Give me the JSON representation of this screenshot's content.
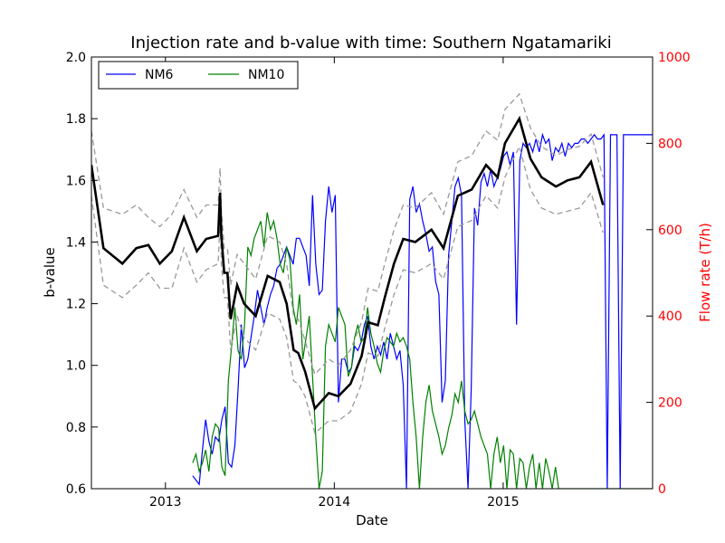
{
  "chart_data": {
    "type": "line",
    "title": "Injection rate and b-value with time: Southern Ngatamariki",
    "xlabel": "Date",
    "ylabel": "b-value",
    "y2label": "Flow rate (T/h)",
    "xlim": [
      "2012-07-25",
      "2015-11-20"
    ],
    "ylim": [
      0.6,
      2.0
    ],
    "y2lim": [
      0,
      1000
    ],
    "x_ticks": [
      "2013",
      "2014",
      "2015"
    ],
    "y_ticks": [
      "0.6",
      "0.8",
      "1.0",
      "1.2",
      "1.4",
      "1.6",
      "1.8",
      "2.0"
    ],
    "y2_ticks": [
      "0",
      "200",
      "400",
      "600",
      "800",
      "1000"
    ],
    "legend": {
      "position": "top-left",
      "entries": [
        "NM6",
        "NM10"
      ]
    },
    "colors": {
      "nm6": "#0000ff",
      "nm10": "#008000",
      "bvalue": "#000000",
      "bound": "#999999",
      "right_axis": "#ff0000"
    },
    "bvalue": {
      "dates": [
        "2012-07-25",
        "2012-08-20",
        "2012-09-30",
        "2012-10-30",
        "2012-11-25",
        "2012-12-20",
        "2013-01-15",
        "2013-02-10",
        "2013-03-10",
        "2013-03-30",
        "2013-04-25",
        "2013-04-29",
        "2013-05-02",
        "2013-05-08",
        "2013-05-15",
        "2013-05-22",
        "2013-06-05",
        "2013-06-20",
        "2013-07-15",
        "2013-08-10",
        "2013-09-05",
        "2013-09-20",
        "2013-10-05",
        "2013-10-15",
        "2013-10-30",
        "2013-11-20",
        "2013-12-20",
        "2014-01-10",
        "2014-02-05",
        "2014-03-01",
        "2014-03-15",
        "2014-04-05",
        "2014-04-20",
        "2014-05-10",
        "2014-05-30",
        "2014-06-25",
        "2014-07-30",
        "2014-08-25",
        "2014-09-25",
        "2014-10-25",
        "2014-11-25",
        "2014-12-20",
        "2015-01-05",
        "2015-02-05",
        "2015-03-01",
        "2015-03-25",
        "2015-04-25",
        "2015-05-20",
        "2015-06-15",
        "2015-07-10",
        "2015-08-05"
      ],
      "values": [
        1.65,
        1.38,
        1.33,
        1.38,
        1.39,
        1.33,
        1.37,
        1.48,
        1.37,
        1.41,
        1.42,
        1.56,
        1.42,
        1.3,
        1.3,
        1.15,
        1.26,
        1.2,
        1.16,
        1.29,
        1.27,
        1.2,
        1.05,
        1.04,
        0.98,
        0.86,
        0.91,
        0.9,
        0.94,
        1.03,
        1.14,
        1.13,
        1.22,
        1.33,
        1.41,
        1.4,
        1.44,
        1.38,
        1.55,
        1.57,
        1.65,
        1.61,
        1.72,
        1.8,
        1.67,
        1.61,
        1.58,
        1.6,
        1.61,
        1.66,
        1.52
      ]
    },
    "bvalue_upper": {
      "dates": [
        "2012-07-25",
        "2012-08-20",
        "2012-09-30",
        "2012-10-30",
        "2012-11-25",
        "2012-12-20",
        "2013-01-15",
        "2013-02-10",
        "2013-03-10",
        "2013-03-30",
        "2013-04-25",
        "2013-04-29",
        "2013-05-02",
        "2013-05-08",
        "2013-05-15",
        "2013-05-22",
        "2013-06-05",
        "2013-06-20",
        "2013-07-15",
        "2013-08-10",
        "2013-09-05",
        "2013-09-20",
        "2013-10-05",
        "2013-10-15",
        "2013-10-30",
        "2013-11-20",
        "2013-12-20",
        "2014-01-10",
        "2014-02-05",
        "2014-03-01",
        "2014-03-15",
        "2014-04-05",
        "2014-04-20",
        "2014-05-10",
        "2014-05-30",
        "2014-06-25",
        "2014-07-30",
        "2014-08-25",
        "2014-09-25",
        "2014-10-25",
        "2014-11-25",
        "2014-12-20",
        "2015-01-05",
        "2015-02-05",
        "2015-03-01",
        "2015-03-25",
        "2015-04-25",
        "2015-05-20",
        "2015-06-15",
        "2015-07-10",
        "2015-08-05"
      ],
      "values": [
        1.76,
        1.51,
        1.49,
        1.52,
        1.48,
        1.45,
        1.49,
        1.57,
        1.48,
        1.52,
        1.52,
        1.64,
        1.5,
        1.38,
        1.38,
        1.26,
        1.36,
        1.33,
        1.28,
        1.42,
        1.4,
        1.33,
        1.16,
        1.15,
        1.08,
        0.97,
        1.02,
        1.0,
        1.05,
        1.14,
        1.25,
        1.24,
        1.33,
        1.44,
        1.52,
        1.51,
        1.56,
        1.49,
        1.66,
        1.68,
        1.76,
        1.73,
        1.83,
        1.88,
        1.77,
        1.71,
        1.68,
        1.7,
        1.71,
        1.75,
        1.61
      ]
    },
    "bvalue_lower": {
      "dates": [
        "2012-07-25",
        "2012-08-20",
        "2012-09-30",
        "2012-10-30",
        "2012-11-25",
        "2012-12-20",
        "2013-01-15",
        "2013-02-10",
        "2013-03-10",
        "2013-03-30",
        "2013-04-25",
        "2013-04-29",
        "2013-05-02",
        "2013-05-08",
        "2013-05-15",
        "2013-05-22",
        "2013-06-05",
        "2013-06-20",
        "2013-07-15",
        "2013-08-10",
        "2013-09-05",
        "2013-09-20",
        "2013-10-05",
        "2013-10-15",
        "2013-10-30",
        "2013-11-20",
        "2013-12-20",
        "2014-01-10",
        "2014-02-05",
        "2014-03-01",
        "2014-03-15",
        "2014-04-05",
        "2014-04-20",
        "2014-05-10",
        "2014-05-30",
        "2014-06-25",
        "2014-07-30",
        "2014-08-25",
        "2014-09-25",
        "2014-10-25",
        "2014-11-25",
        "2014-12-20",
        "2015-01-05",
        "2015-02-05",
        "2015-03-01",
        "2015-03-25",
        "2015-04-25",
        "2015-05-20",
        "2015-06-15",
        "2015-07-10",
        "2015-08-05"
      ],
      "values": [
        1.55,
        1.26,
        1.22,
        1.26,
        1.3,
        1.25,
        1.25,
        1.38,
        1.27,
        1.31,
        1.33,
        1.47,
        1.33,
        1.22,
        1.22,
        1.05,
        1.16,
        1.09,
        1.05,
        1.17,
        1.15,
        1.09,
        0.95,
        0.94,
        0.9,
        0.78,
        0.82,
        0.82,
        0.85,
        0.94,
        1.04,
        1.03,
        1.12,
        1.23,
        1.31,
        1.3,
        1.33,
        1.28,
        1.45,
        1.47,
        1.55,
        1.51,
        1.61,
        1.71,
        1.57,
        1.51,
        1.49,
        1.5,
        1.51,
        1.56,
        1.43
      ]
    },
    "series": [
      {
        "name": "NM6",
        "dates": [
          "2013-03-01",
          "2013-03-08",
          "2013-03-15",
          "2013-03-22",
          "2013-03-29",
          "2013-04-05",
          "2013-04-12",
          "2013-04-19",
          "2013-04-26",
          "2013-05-03",
          "2013-05-10",
          "2013-05-17",
          "2013-05-24",
          "2013-05-31",
          "2013-06-07",
          "2013-06-14",
          "2013-06-21",
          "2013-06-28",
          "2013-07-05",
          "2013-07-12",
          "2013-07-19",
          "2013-07-26",
          "2013-08-02",
          "2013-08-09",
          "2013-08-16",
          "2013-08-23",
          "2013-08-30",
          "2013-09-06",
          "2013-09-13",
          "2013-09-20",
          "2013-09-27",
          "2013-10-04",
          "2013-10-11",
          "2013-10-18",
          "2013-10-25",
          "2013-11-01",
          "2013-11-08",
          "2013-11-15",
          "2013-11-22",
          "2013-11-29",
          "2013-12-06",
          "2013-12-13",
          "2013-12-20",
          "2013-12-27",
          "2014-01-03",
          "2014-01-10",
          "2014-01-17",
          "2014-01-24",
          "2014-01-31",
          "2014-02-07",
          "2014-02-14",
          "2014-02-21",
          "2014-02-28",
          "2014-03-07",
          "2014-03-14",
          "2014-03-21",
          "2014-03-28",
          "2014-04-04",
          "2014-04-11",
          "2014-04-18",
          "2014-04-25",
          "2014-05-02",
          "2014-05-09",
          "2014-05-16",
          "2014-05-23",
          "2014-05-30",
          "2014-06-06",
          "2014-06-13",
          "2014-06-20",
          "2014-06-27",
          "2014-07-04",
          "2014-07-11",
          "2014-07-18",
          "2014-07-25",
          "2014-08-01",
          "2014-08-08",
          "2014-08-15",
          "2014-08-22",
          "2014-08-29",
          "2014-09-05",
          "2014-09-12",
          "2014-09-19",
          "2014-09-26",
          "2014-10-03",
          "2014-10-10",
          "2014-10-17",
          "2014-10-24",
          "2014-10-31",
          "2014-11-07",
          "2014-11-14",
          "2014-11-21",
          "2014-11-28",
          "2014-12-05",
          "2014-12-12",
          "2014-12-19",
          "2014-12-26",
          "2015-01-02",
          "2015-01-09",
          "2015-01-16",
          "2015-01-23",
          "2015-01-30",
          "2015-02-06",
          "2015-02-13",
          "2015-02-20",
          "2015-02-27",
          "2015-03-06",
          "2015-03-13",
          "2015-03-20",
          "2015-03-27",
          "2015-04-03",
          "2015-04-10",
          "2015-04-17",
          "2015-04-24",
          "2015-05-01",
          "2015-05-08",
          "2015-05-15",
          "2015-05-22",
          "2015-05-29",
          "2015-06-05",
          "2015-06-12",
          "2015-06-19",
          "2015-06-26",
          "2015-07-03",
          "2015-07-10",
          "2015-07-17",
          "2015-07-24",
          "2015-07-31",
          "2015-08-07",
          "2015-08-14",
          "2015-08-21",
          "2015-08-28",
          "2015-09-04",
          "2015-09-11",
          "2015-09-18",
          "2015-09-25",
          "2015-10-02",
          "2015-10-09",
          "2015-10-16",
          "2015-10-23",
          "2015-10-30",
          "2015-11-06",
          "2015-11-13",
          "2015-11-20"
        ],
        "values": [
          30,
          20,
          10,
          90,
          160,
          110,
          80,
          120,
          110,
          160,
          190,
          60,
          50,
          100,
          230,
          380,
          280,
          300,
          350,
          400,
          460,
          420,
          380,
          420,
          450,
          470,
          510,
          520,
          540,
          560,
          540,
          520,
          580,
          580,
          560,
          540,
          470,
          680,
          520,
          450,
          460,
          620,
          700,
          640,
          680,
          200,
          300,
          300,
          270,
          280,
          330,
          320,
          340,
          380,
          400,
          330,
          300,
          330,
          310,
          340,
          300,
          360,
          330,
          300,
          320,
          240,
          0,
          670,
          700,
          640,
          660,
          620,
          590,
          550,
          560,
          480,
          450,
          200,
          250,
          540,
          620,
          700,
          720,
          680,
          160,
          0,
          230,
          650,
          610,
          710,
          730,
          700,
          740,
          700,
          720,
          740,
          770,
          780,
          750,
          780,
          380,
          760,
          800,
          790,
          800,
          780,
          810,
          780,
          820,
          800,
          810,
          760,
          790,
          780,
          800,
          770,
          800,
          790,
          800,
          800,
          810,
          810,
          800,
          810,
          820,
          810,
          810,
          820,
          0,
          820,
          820,
          820,
          0,
          820,
          820,
          820,
          820,
          820,
          820,
          820,
          820,
          820,
          820
        ]
      },
      {
        "name": "NM10",
        "dates": [
          "2013-03-01",
          "2013-03-08",
          "2013-03-15",
          "2013-03-22",
          "2013-03-29",
          "2013-04-05",
          "2013-04-12",
          "2013-04-19",
          "2013-04-26",
          "2013-05-03",
          "2013-05-10",
          "2013-05-17",
          "2013-05-24",
          "2013-05-31",
          "2013-06-07",
          "2013-06-14",
          "2013-06-21",
          "2013-06-28",
          "2013-07-05",
          "2013-07-12",
          "2013-07-19",
          "2013-07-26",
          "2013-08-02",
          "2013-08-09",
          "2013-08-16",
          "2013-08-23",
          "2013-08-30",
          "2013-09-06",
          "2013-09-13",
          "2013-09-20",
          "2013-09-27",
          "2013-10-04",
          "2013-10-11",
          "2013-10-18",
          "2013-10-25",
          "2013-11-01",
          "2013-11-08",
          "2013-11-15",
          "2013-11-22",
          "2013-11-29",
          "2013-12-06",
          "2013-12-13",
          "2013-12-20",
          "2013-12-27",
          "2014-01-03",
          "2014-01-10",
          "2014-01-17",
          "2014-01-24",
          "2014-01-31",
          "2014-02-07",
          "2014-02-14",
          "2014-02-21",
          "2014-02-28",
          "2014-03-07",
          "2014-03-14",
          "2014-03-21",
          "2014-03-28",
          "2014-04-04",
          "2014-04-11",
          "2014-04-18",
          "2014-04-25",
          "2014-05-02",
          "2014-05-09",
          "2014-05-16",
          "2014-05-23",
          "2014-05-30",
          "2014-06-06",
          "2014-06-13",
          "2014-06-20",
          "2014-06-27",
          "2014-07-04",
          "2014-07-11",
          "2014-07-18",
          "2014-07-25",
          "2014-08-01",
          "2014-08-08",
          "2014-08-15",
          "2014-08-22",
          "2014-08-29",
          "2014-09-05",
          "2014-09-12",
          "2014-09-19",
          "2014-09-26",
          "2014-10-03",
          "2014-10-10",
          "2014-10-17",
          "2014-10-24",
          "2014-10-31",
          "2014-11-07",
          "2014-11-14",
          "2014-11-21",
          "2014-11-28",
          "2014-12-05",
          "2014-12-12",
          "2014-12-19",
          "2014-12-26",
          "2015-01-02",
          "2015-01-09",
          "2015-01-16",
          "2015-01-23",
          "2015-01-30",
          "2015-02-06",
          "2015-02-13",
          "2015-02-20",
          "2015-02-27",
          "2015-03-06",
          "2015-03-13",
          "2015-03-20",
          "2015-03-27",
          "2015-04-03",
          "2015-04-10",
          "2015-04-17",
          "2015-04-24",
          "2015-05-01",
          "2015-05-08",
          "2015-05-15",
          "2015-05-22",
          "2015-05-29",
          "2015-06-05",
          "2015-06-12",
          "2015-06-19",
          "2015-06-26",
          "2015-07-03",
          "2015-07-10",
          "2015-07-17",
          "2015-07-24",
          "2015-07-31",
          "2015-08-07",
          "2015-08-14",
          "2015-08-21",
          "2015-08-28",
          "2015-09-04",
          "2015-09-11",
          "2015-09-18",
          "2015-09-25",
          "2015-10-02",
          "2015-10-09",
          "2015-10-16",
          "2015-10-23",
          "2015-10-30",
          "2015-11-06",
          "2015-11-13",
          "2015-11-20"
        ],
        "values": [
          60,
          80,
          40,
          60,
          90,
          40,
          120,
          150,
          140,
          50,
          30,
          250,
          330,
          420,
          320,
          300,
          380,
          560,
          540,
          580,
          600,
          620,
          560,
          640,
          600,
          620,
          580,
          520,
          500,
          560,
          530,
          420,
          380,
          450,
          300,
          350,
          400,
          260,
          120,
          0,
          40,
          330,
          380,
          360,
          340,
          420,
          400,
          380,
          260,
          280,
          350,
          380,
          340,
          350,
          420,
          360,
          330,
          290,
          270,
          320,
          350,
          340,
          330,
          360,
          340,
          350,
          330,
          300,
          200,
          120,
          0,
          120,
          200,
          240,
          180,
          150,
          120,
          80,
          100,
          140,
          170,
          220,
          200,
          250,
          180,
          150,
          160,
          180,
          150,
          120,
          100,
          80,
          0,
          80,
          120,
          60,
          100,
          0,
          90,
          80,
          0,
          70,
          60,
          0,
          50,
          80,
          0,
          60,
          0,
          70,
          40,
          0,
          50,
          0,
          0,
          0,
          0,
          0,
          0,
          0,
          0,
          0,
          0,
          0,
          0,
          0,
          0,
          0,
          0,
          0,
          0,
          0,
          0,
          0,
          0,
          0,
          0,
          0,
          0,
          0,
          0,
          0,
          0
        ]
      }
    ]
  }
}
